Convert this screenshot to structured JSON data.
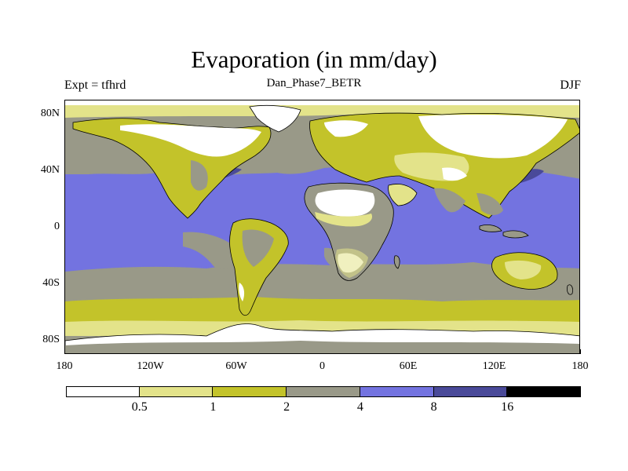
{
  "title": "Evaporation (in mm/day)",
  "subtitle": "Dan_Phase7_BETR",
  "left_label": "Expt = tfhrd",
  "right_label": "DJF",
  "lat_ticks": [
    {
      "label": "80N",
      "lat": 80
    },
    {
      "label": "40N",
      "lat": 40
    },
    {
      "label": "0",
      "lat": 0
    },
    {
      "label": "40S",
      "lat": -40
    },
    {
      "label": "80S",
      "lat": -80
    }
  ],
  "lon_ticks": [
    {
      "label": "180",
      "lon": -180
    },
    {
      "label": "120W",
      "lon": -120
    },
    {
      "label": "60W",
      "lon": -60
    },
    {
      "label": "0",
      "lon": 0
    },
    {
      "label": "60E",
      "lon": 60
    },
    {
      "label": "120E",
      "lon": 120
    },
    {
      "label": "180",
      "lon": 180
    }
  ],
  "colorbar": {
    "colors": [
      "#ffffff",
      "#e3e38a",
      "#c3c32a",
      "#999988",
      "#7373e0",
      "#4a4a99",
      "#000000"
    ],
    "labels": [
      "0.5",
      "1",
      "2",
      "4",
      "8",
      "16"
    ]
  },
  "map_colors": {
    "ocean_mid": "#7373e0",
    "ocean_high": "#4a4a99",
    "ocean_temperate": "#999988",
    "moderate": "#c3c32a",
    "low": "#e3e38a",
    "very_low": "#ffffff",
    "coast": "#000000"
  }
}
